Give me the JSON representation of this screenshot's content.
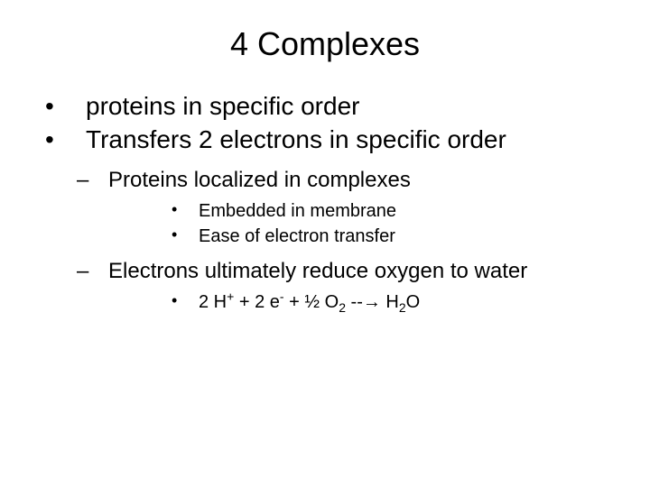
{
  "title": "4 Complexes",
  "bullets": {
    "b1": "proteins in specific order",
    "b2": "Transfers 2 electrons in specific order"
  },
  "sub": {
    "s1": "Proteins localized in complexes",
    "s1_children": {
      "c1": "Embedded in membrane",
      "c2": "Ease of electron transfer"
    },
    "s2": "Electrons ultimately reduce oxygen to water",
    "s2_children": {
      "eq_prefix": "2 H",
      "eq_hplus": "+",
      "eq_mid1": " + 2 e",
      "eq_eminus": "-",
      "eq_mid2": " + ½ O",
      "eq_o2sub": "2",
      "eq_arrow": " --→  H",
      "eq_h2sub": "2",
      "eq_end": "O"
    }
  },
  "style": {
    "background": "#ffffff",
    "text_color": "#000000",
    "title_fontsize": 36,
    "level1_fontsize": 28,
    "level2_fontsize": 24,
    "level3_fontsize": 20
  }
}
